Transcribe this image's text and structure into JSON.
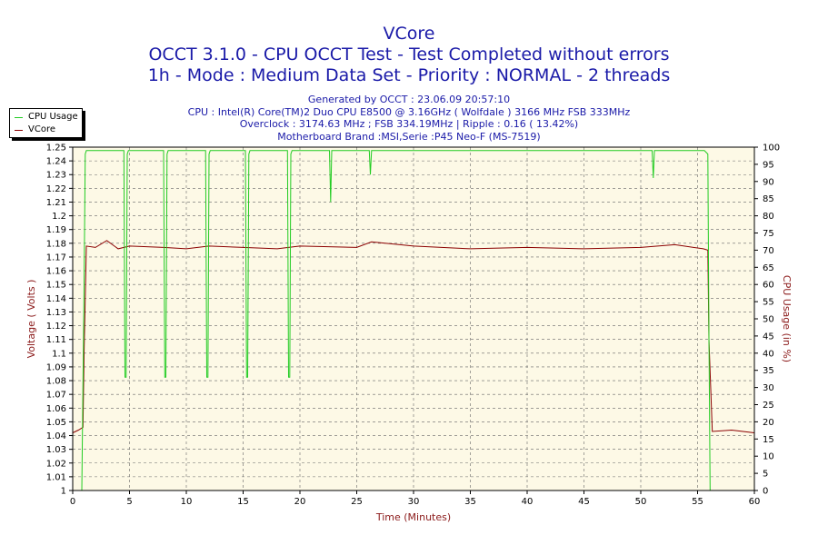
{
  "header": {
    "title_lines": [
      "VCore",
      "OCCT 3.1.0 - CPU OCCT Test - Test Completed without errors",
      "1h - Mode : Medium Data Set - Priority : NORMAL - 2 threads"
    ],
    "info_lines": [
      "Generated by OCCT : 23.06.09 20:57:10",
      "CPU : Intel(R) Core(TM)2 Duo CPU E8500 @ 3.16GHz ( Wolfdale ) 3166 MHz FSB 333MHz",
      "Overclock : 3174.63 MHz ; FSB 334.19MHz | Ripple : 0.16 ( 13.42%)",
      "Motherboard Brand :MSI,Serie :P45 Neo-F (MS-7519)"
    ]
  },
  "legend": [
    {
      "label": "CPU Usage",
      "color": "#22cc22"
    },
    {
      "label": "VCore",
      "color": "#8b0000"
    }
  ],
  "colors": {
    "plot_bg": "#fdf9e6",
    "grid": "#666666",
    "axis_text_left": "#8b1a1a",
    "axis_text_right": "#8b1a1a",
    "cpu_line": "#22cc22",
    "vcore_line": "#8b0000"
  },
  "chart_data": {
    "type": "line",
    "xlabel": "Time (Minutes)",
    "ylabel": "Voltage ( Volts )",
    "y2label": "CPU Usage (in %)",
    "xlim": [
      0,
      60
    ],
    "ylim": [
      1.0,
      1.25
    ],
    "y2lim": [
      0,
      100
    ],
    "x_ticks": [
      "0",
      "5",
      "10",
      "15",
      "20",
      "25",
      "30",
      "35",
      "40",
      "45",
      "50",
      "55",
      "60"
    ],
    "y_ticks": [
      "1",
      "1.01",
      "1.02",
      "1.03",
      "1.04",
      "1.05",
      "1.06",
      "1.07",
      "1.08",
      "1.09",
      "1.1",
      "1.11",
      "1.12",
      "1.13",
      "1.14",
      "1.15",
      "1.16",
      "1.17",
      "1.18",
      "1.19",
      "1.2",
      "1.21",
      "1.22",
      "1.23",
      "1.24",
      "1.25"
    ],
    "y2_ticks": [
      "0",
      "5",
      "10",
      "15",
      "20",
      "25",
      "30",
      "35",
      "40",
      "45",
      "50",
      "55",
      "60",
      "65",
      "70",
      "75",
      "80",
      "85",
      "90",
      "95",
      "100"
    ],
    "grid": true,
    "series": [
      {
        "name": "VCore",
        "axis": "left",
        "x": [
          0,
          0.5,
          0.9,
          1.0,
          1.2,
          2,
          3,
          4,
          5,
          8,
          10,
          12,
          15,
          18,
          20,
          25,
          26.3,
          30,
          35,
          40,
          45,
          50,
          53,
          55.5,
          55.9,
          56.0,
          56.3,
          58,
          60
        ],
        "values": [
          1.042,
          1.044,
          1.046,
          1.1,
          1.178,
          1.177,
          1.182,
          1.176,
          1.178,
          1.177,
          1.176,
          1.178,
          1.177,
          1.176,
          1.178,
          1.177,
          1.181,
          1.178,
          1.176,
          1.177,
          1.176,
          1.177,
          1.179,
          1.176,
          1.175,
          1.11,
          1.043,
          1.044,
          1.042
        ]
      },
      {
        "name": "CPU Usage",
        "axis": "right",
        "x": [
          0.8,
          1.0,
          1.1,
          1.2,
          1.3,
          4.5,
          4.6,
          4.7,
          4.8,
          4.9,
          8.0,
          8.1,
          8.2,
          8.3,
          8.4,
          11.7,
          11.8,
          11.9,
          12.0,
          12.1,
          15.2,
          15.3,
          15.4,
          15.5,
          15.6,
          18.9,
          19.0,
          19.1,
          19.2,
          19.3,
          22.6,
          22.7,
          22.8,
          26.1,
          26.2,
          26.3,
          51.0,
          51.1,
          51.2,
          55.6,
          55.9,
          56.0,
          56.1,
          56.2
        ],
        "values": [
          0,
          60,
          98,
          99,
          99,
          99,
          33,
          33,
          98,
          99,
          99,
          33,
          33,
          98,
          99,
          99,
          33,
          33,
          98,
          99,
          99,
          33,
          33,
          98,
          99,
          99,
          33,
          33,
          98,
          99,
          99,
          84,
          99,
          99,
          92,
          99,
          99,
          91,
          99,
          99,
          98,
          45,
          0,
          0
        ]
      }
    ]
  }
}
